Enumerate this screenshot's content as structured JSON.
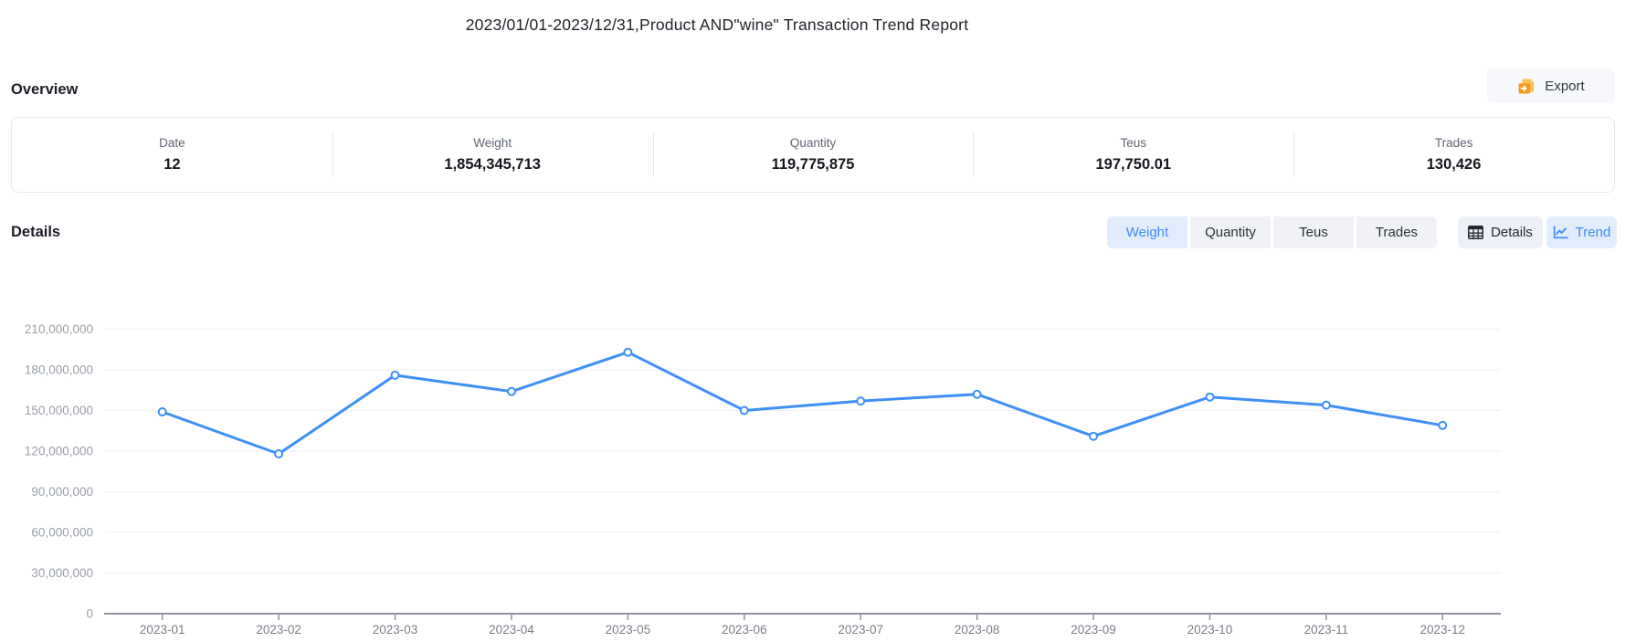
{
  "page": {
    "title": "2023/01/01-2023/12/31,Product AND\"wine\" Transaction Trend Report"
  },
  "overview": {
    "heading": "Overview",
    "export_label": "Export",
    "stats": [
      {
        "label": "Date",
        "value": "12"
      },
      {
        "label": "Weight",
        "value": "1,854,345,713"
      },
      {
        "label": "Quantity",
        "value": "119,775,875"
      },
      {
        "label": "Teus",
        "value": "197,750.01"
      },
      {
        "label": "Trades",
        "value": "130,426"
      }
    ]
  },
  "details": {
    "heading": "Details",
    "metric_tabs": [
      {
        "label": "Weight",
        "active": true
      },
      {
        "label": "Quantity",
        "active": false
      },
      {
        "label": "Teus",
        "active": false
      },
      {
        "label": "Trades",
        "active": false
      }
    ],
    "view_tabs": [
      {
        "label": "Details",
        "icon": "table-icon",
        "active": false
      },
      {
        "label": "Trend",
        "icon": "line-chart-icon",
        "active": true
      }
    ]
  },
  "colors": {
    "accent_blue": "#3d8bf8",
    "accent_blue_bg": "#e1ecfc",
    "export_icon_orange": "#f59a23",
    "export_icon_orange_light": "#fac15c"
  },
  "chart_data": {
    "type": "line",
    "title": "",
    "xlabel": "",
    "ylabel": "",
    "x": [
      "2023-01",
      "2023-02",
      "2023-03",
      "2023-04",
      "2023-05",
      "2023-06",
      "2023-07",
      "2023-08",
      "2023-09",
      "2023-10",
      "2023-11",
      "2023-12"
    ],
    "series": [
      {
        "name": "Weight",
        "values": [
          149000000,
          118000000,
          176000000,
          164000000,
          193000000,
          150000000,
          157000000,
          162000000,
          131000000,
          160000000,
          154000000,
          139000000
        ]
      }
    ],
    "ylim": [
      0,
      210000000
    ],
    "y_ticks": [
      0,
      30000000,
      60000000,
      90000000,
      120000000,
      150000000,
      180000000,
      210000000
    ],
    "y_tick_labels": [
      "0",
      "30,000,000",
      "60,000,000",
      "90,000,000",
      "120,000,000",
      "150,000,000",
      "180,000,000",
      "210,000,000"
    ],
    "grid": true,
    "legend": false,
    "line_color": "#3e90f7",
    "point_style": "hollow-circle",
    "grid_color": "#eef0f4",
    "axis_color": "#8f959e",
    "y_label_color": "#9aa0a8",
    "x_label_color": "#7a7f87"
  }
}
